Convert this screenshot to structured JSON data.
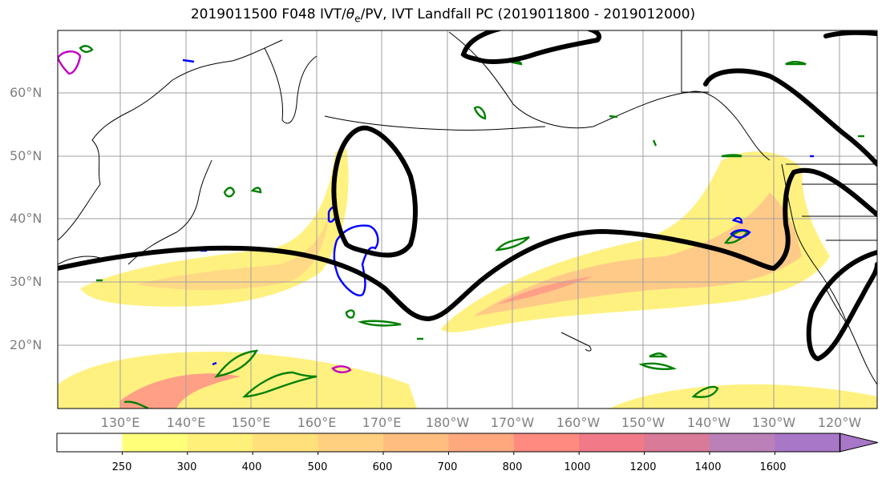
{
  "title": {
    "prefix": "2019011500 F048 IVT/",
    "theta": "θ",
    "sub": "e",
    "suffix": "/PV, IVT Landfall PC (2019011800 - 2019012000)"
  },
  "lat_labels": [
    "60°N",
    "50°N",
    "40°N",
    "30°N",
    "20°N"
  ],
  "lon_labels": [
    "130°E",
    "140°E",
    "150°E",
    "160°E",
    "170°E",
    "180°W",
    "170°W",
    "160°W",
    "150°W",
    "140°W",
    "130°W",
    "120°W"
  ],
  "colorbar": {
    "ticks": [
      "250",
      "300",
      "400",
      "500",
      "600",
      "700",
      "800",
      "1000",
      "1200",
      "1400",
      "1600"
    ],
    "colors": [
      "#ffffff",
      "#ffff7a",
      "#fff07a",
      "#ffe07a",
      "#ffd080",
      "#ffbe80",
      "#ffa87e",
      "#ff8a80",
      "#f07a88",
      "#d97a98",
      "#bb80b8",
      "#a877c8"
    ]
  },
  "legend_colors": {
    "ivt_pc_contour": "#000000",
    "theta_e": "#008000",
    "pv_blue": "#0000ff",
    "pv_magenta": "#c000c0"
  }
}
